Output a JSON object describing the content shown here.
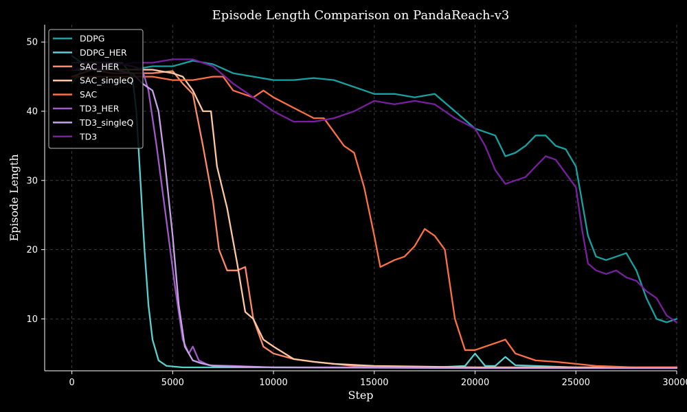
{
  "chart_data": {
    "type": "line",
    "title": "Episode Length Comparison on PandaReach-v3",
    "xlabel": "Step",
    "ylabel": "Episode Length",
    "xlim": [
      -1350,
      30000
    ],
    "ylim": [
      2.5,
      52.5
    ],
    "xticks": [
      0,
      5000,
      10000,
      15000,
      20000,
      25000,
      30000
    ],
    "xtick_labels": [
      "0",
      "5000",
      "10000",
      "15000",
      "20000",
      "25000",
      "30000"
    ],
    "yticks": [
      10,
      20,
      30,
      40,
      50
    ],
    "ytick_labels": [
      "10",
      "20",
      "30",
      "40",
      "50"
    ],
    "grid": true,
    "legend_position": "upper-left",
    "series": [
      {
        "name": "DDPG",
        "color": "#16a3a3",
        "points": [
          [
            0,
            44
          ],
          [
            500,
            46
          ],
          [
            1000,
            46
          ],
          [
            2000,
            46
          ],
          [
            3000,
            46
          ],
          [
            4000,
            46.5
          ],
          [
            5000,
            46.5
          ],
          [
            6000,
            47.3
          ],
          [
            7000,
            46.8
          ],
          [
            8000,
            45.5
          ],
          [
            9000,
            45
          ],
          [
            10000,
            44.5
          ],
          [
            11000,
            44.5
          ],
          [
            12000,
            44.8
          ],
          [
            13000,
            44.5
          ],
          [
            14000,
            43.5
          ],
          [
            15000,
            42.5
          ],
          [
            16000,
            42.5
          ],
          [
            17000,
            42
          ],
          [
            18000,
            42.5
          ],
          [
            19000,
            40
          ],
          [
            20000,
            37.5
          ],
          [
            21000,
            36.5
          ],
          [
            21500,
            33.5
          ],
          [
            22000,
            34
          ],
          [
            22500,
            35
          ],
          [
            23000,
            36.5
          ],
          [
            23500,
            36.5
          ],
          [
            24000,
            35
          ],
          [
            24500,
            34.5
          ],
          [
            25000,
            32
          ],
          [
            25300,
            27
          ],
          [
            25600,
            22
          ],
          [
            26000,
            19
          ],
          [
            26500,
            18.5
          ],
          [
            27000,
            19
          ],
          [
            27500,
            19.5
          ],
          [
            28000,
            17
          ],
          [
            28500,
            13
          ],
          [
            29000,
            10
          ],
          [
            29500,
            9.5
          ],
          [
            30000,
            10
          ]
        ]
      },
      {
        "name": "DDPG_HER",
        "color": "#5ad1d1",
        "points": [
          [
            0,
            48
          ],
          [
            500,
            47
          ],
          [
            1500,
            47
          ],
          [
            2500,
            47
          ],
          [
            3000,
            45
          ],
          [
            3200,
            40
          ],
          [
            3400,
            30
          ],
          [
            3600,
            20
          ],
          [
            3800,
            12
          ],
          [
            4000,
            7
          ],
          [
            4300,
            4
          ],
          [
            4700,
            3.2
          ],
          [
            5500,
            3
          ],
          [
            7000,
            3
          ],
          [
            10000,
            3
          ],
          [
            15000,
            3
          ],
          [
            18000,
            3
          ],
          [
            19500,
            3.2
          ],
          [
            20000,
            5
          ],
          [
            20500,
            3.2
          ],
          [
            21000,
            3.2
          ],
          [
            21500,
            4.5
          ],
          [
            22000,
            3.3
          ],
          [
            23000,
            3.2
          ],
          [
            25000,
            3
          ],
          [
            28000,
            3
          ],
          [
            30000,
            3
          ]
        ]
      },
      {
        "name": "SAC_HER",
        "color": "#ff8a65",
        "points": [
          [
            0,
            45
          ],
          [
            1000,
            46
          ],
          [
            2000,
            45.5
          ],
          [
            3000,
            45.5
          ],
          [
            4000,
            45.5
          ],
          [
            5000,
            45.8
          ],
          [
            5500,
            44
          ],
          [
            6000,
            42.5
          ],
          [
            6500,
            35
          ],
          [
            7000,
            27
          ],
          [
            7300,
            20
          ],
          [
            7700,
            17
          ],
          [
            8200,
            17
          ],
          [
            8600,
            17.5
          ],
          [
            9000,
            10
          ],
          [
            9500,
            6
          ],
          [
            10000,
            5
          ],
          [
            11000,
            4.2
          ],
          [
            12000,
            3.8
          ],
          [
            14000,
            3.2
          ],
          [
            16000,
            3
          ],
          [
            20000,
            3
          ],
          [
            25000,
            3
          ],
          [
            30000,
            3
          ]
        ]
      },
      {
        "name": "SAC_singleQ",
        "color": "#ffc8a0",
        "points": [
          [
            0,
            46
          ],
          [
            1000,
            46
          ],
          [
            2000,
            46
          ],
          [
            3000,
            46
          ],
          [
            4000,
            46
          ],
          [
            5000,
            45.5
          ],
          [
            5500,
            45
          ],
          [
            6000,
            43
          ],
          [
            6500,
            40
          ],
          [
            6900,
            40
          ],
          [
            7200,
            32
          ],
          [
            7700,
            26
          ],
          [
            8200,
            18
          ],
          [
            8600,
            11
          ],
          [
            9000,
            10
          ],
          [
            9500,
            7
          ],
          [
            10000,
            6
          ],
          [
            11000,
            4.2
          ],
          [
            12000,
            3.8
          ],
          [
            13000,
            3.5
          ],
          [
            15000,
            3.2
          ],
          [
            20000,
            3
          ],
          [
            25000,
            3
          ],
          [
            30000,
            3
          ]
        ]
      },
      {
        "name": "SAC",
        "color": "#ff7043",
        "points": [
          [
            0,
            45
          ],
          [
            1000,
            45
          ],
          [
            2000,
            45
          ],
          [
            3000,
            45
          ],
          [
            4000,
            45
          ],
          [
            5000,
            44.5
          ],
          [
            6000,
            44.5
          ],
          [
            7000,
            45
          ],
          [
            7500,
            45
          ],
          [
            8000,
            43
          ],
          [
            9000,
            42
          ],
          [
            9500,
            43
          ],
          [
            10000,
            42
          ],
          [
            11000,
            40.5
          ],
          [
            12000,
            39
          ],
          [
            12500,
            39
          ],
          [
            13000,
            37
          ],
          [
            13500,
            35
          ],
          [
            14000,
            34
          ],
          [
            14500,
            29
          ],
          [
            15000,
            22
          ],
          [
            15300,
            17.5
          ],
          [
            16000,
            18.5
          ],
          [
            16500,
            19
          ],
          [
            17000,
            20.5
          ],
          [
            17500,
            23
          ],
          [
            18000,
            22
          ],
          [
            18500,
            20
          ],
          [
            19000,
            10
          ],
          [
            19500,
            5.5
          ],
          [
            20000,
            5.5
          ],
          [
            20500,
            6
          ],
          [
            21000,
            6.5
          ],
          [
            21500,
            7
          ],
          [
            22000,
            5
          ],
          [
            23000,
            4
          ],
          [
            24000,
            3.8
          ],
          [
            25000,
            3.5
          ],
          [
            26000,
            3.2
          ],
          [
            28000,
            3
          ],
          [
            30000,
            3
          ]
        ]
      },
      {
        "name": "TD3_HER",
        "color": "#a259c9",
        "points": [
          [
            0,
            47
          ],
          [
            1000,
            47
          ],
          [
            2000,
            47
          ],
          [
            3000,
            46.5
          ],
          [
            3500,
            46
          ],
          [
            3800,
            43
          ],
          [
            4200,
            35
          ],
          [
            4700,
            24
          ],
          [
            5100,
            15
          ],
          [
            5500,
            7
          ],
          [
            5800,
            5
          ],
          [
            6000,
            6
          ],
          [
            6300,
            4
          ],
          [
            6800,
            3.3
          ],
          [
            8000,
            3.2
          ],
          [
            10000,
            3
          ],
          [
            15000,
            3
          ],
          [
            20000,
            2.9
          ],
          [
            25000,
            2.9
          ],
          [
            30000,
            2.9
          ]
        ]
      },
      {
        "name": "TD3_singleQ",
        "color": "#c9a2e8",
        "points": [
          [
            0,
            46
          ],
          [
            1000,
            46
          ],
          [
            2000,
            46
          ],
          [
            3000,
            45.5
          ],
          [
            3500,
            44
          ],
          [
            4000,
            43
          ],
          [
            4300,
            40
          ],
          [
            4600,
            33
          ],
          [
            5000,
            22
          ],
          [
            5300,
            12
          ],
          [
            5600,
            6
          ],
          [
            6000,
            4
          ],
          [
            6400,
            3.6
          ],
          [
            7000,
            3.2
          ],
          [
            10000,
            3
          ],
          [
            20000,
            2.9
          ],
          [
            30000,
            2.9
          ]
        ]
      },
      {
        "name": "TD3",
        "color": "#7b1fa2",
        "points": [
          [
            0,
            46
          ],
          [
            1000,
            46.5
          ],
          [
            2000,
            46.5
          ],
          [
            3000,
            47
          ],
          [
            4000,
            47
          ],
          [
            5000,
            47.5
          ],
          [
            6000,
            47.5
          ],
          [
            7000,
            46.5
          ],
          [
            8000,
            44
          ],
          [
            9000,
            42
          ],
          [
            10000,
            40
          ],
          [
            11000,
            38.5
          ],
          [
            12000,
            38.5
          ],
          [
            13000,
            39
          ],
          [
            14000,
            40
          ],
          [
            15000,
            41.5
          ],
          [
            16000,
            41
          ],
          [
            17000,
            41.5
          ],
          [
            18000,
            41
          ],
          [
            19000,
            39
          ],
          [
            20000,
            37.5
          ],
          [
            20500,
            35
          ],
          [
            21000,
            31.5
          ],
          [
            21500,
            29.5
          ],
          [
            22000,
            30
          ],
          [
            22500,
            30.5
          ],
          [
            23000,
            32
          ],
          [
            23500,
            33.5
          ],
          [
            24000,
            33
          ],
          [
            24500,
            31
          ],
          [
            25000,
            29
          ],
          [
            25300,
            23
          ],
          [
            25600,
            18
          ],
          [
            26000,
            17
          ],
          [
            26500,
            16.5
          ],
          [
            27000,
            17
          ],
          [
            27500,
            16
          ],
          [
            28000,
            15.5
          ],
          [
            28500,
            14
          ],
          [
            29000,
            13
          ],
          [
            29500,
            10.5
          ],
          [
            30000,
            9.5
          ]
        ]
      }
    ]
  }
}
